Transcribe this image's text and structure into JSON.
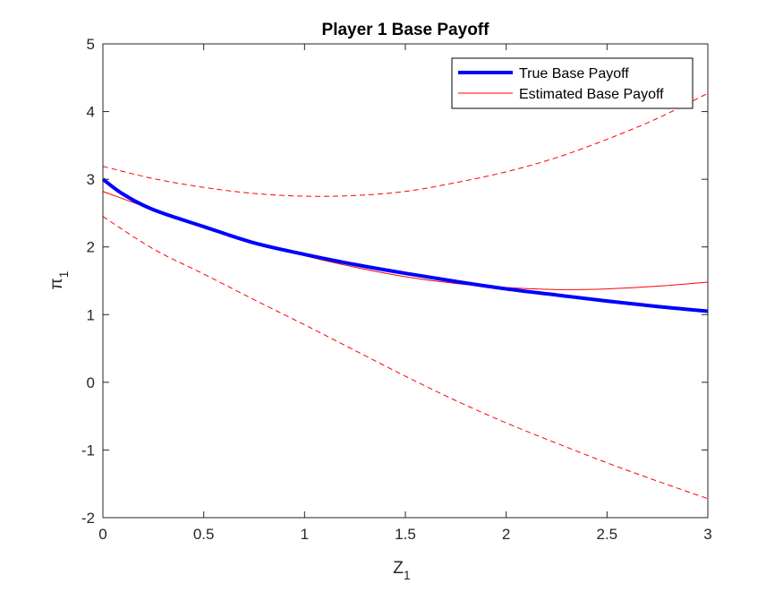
{
  "chart_data": {
    "type": "line",
    "title": "Player 1 Base Payoff",
    "xlabel": {
      "base": "Z",
      "subscript": "1"
    },
    "ylabel": {
      "base": "π",
      "subscript": "1"
    },
    "xlim": [
      0,
      3
    ],
    "ylim": [
      -2,
      5
    ],
    "xticks": [
      0,
      0.5,
      1,
      1.5,
      2,
      2.5,
      3
    ],
    "xtick_labels": [
      "0",
      "0.5",
      "1",
      "1.5",
      "2",
      "2.5",
      "3"
    ],
    "yticks": [
      -2,
      -1,
      0,
      1,
      2,
      3,
      4,
      5
    ],
    "ytick_labels": [
      "-2",
      "-1",
      "0",
      "1",
      "2",
      "3",
      "4",
      "5"
    ],
    "grid": false,
    "legend_position": "top-right",
    "legend": [
      "True Base Payoff",
      "Estimated Base Payoff"
    ],
    "series": [
      {
        "name": "True Base Payoff",
        "color": "#0000ff",
        "style": "solid-thick",
        "x": [
          0,
          0.1,
          0.25,
          0.5,
          0.75,
          1.0,
          1.25,
          1.5,
          1.75,
          2.0,
          2.25,
          2.5,
          2.75,
          3.0
        ],
        "y": [
          3.0,
          2.78,
          2.55,
          2.3,
          2.06,
          1.89,
          1.74,
          1.61,
          1.49,
          1.38,
          1.29,
          1.2,
          1.12,
          1.05
        ]
      },
      {
        "name": "Estimated Base Payoff",
        "color": "#ff0000",
        "style": "solid-thin",
        "x": [
          0,
          0.25,
          0.5,
          0.75,
          1.0,
          1.25,
          1.5,
          1.75,
          2.0,
          2.25,
          2.5,
          2.75,
          3.0
        ],
        "y": [
          2.82,
          2.55,
          2.3,
          2.07,
          1.87,
          1.7,
          1.56,
          1.46,
          1.4,
          1.37,
          1.38,
          1.42,
          1.48
        ]
      },
      {
        "color": "#ff0000",
        "style": "dashed",
        "x": [
          0,
          0.25,
          0.5,
          0.75,
          1.0,
          1.25,
          1.5,
          1.75,
          2.0,
          2.25,
          2.5,
          2.75,
          3.0
        ],
        "y": [
          3.19,
          3.01,
          2.88,
          2.79,
          2.75,
          2.76,
          2.82,
          2.95,
          3.11,
          3.32,
          3.59,
          3.9,
          4.27
        ]
      },
      {
        "color": "#ff0000",
        "style": "dashed",
        "x": [
          0,
          0.25,
          0.5,
          0.75,
          1.0,
          1.25,
          1.5,
          1.75,
          2.0,
          2.25,
          2.5,
          2.75,
          3.0
        ],
        "y": [
          2.45,
          1.97,
          1.6,
          1.22,
          0.85,
          0.47,
          0.09,
          -0.27,
          -0.6,
          -0.9,
          -1.19,
          -1.46,
          -1.72
        ]
      }
    ]
  }
}
